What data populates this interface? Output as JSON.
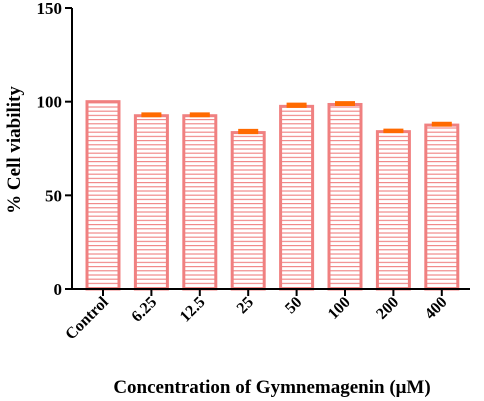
{
  "chart_data": {
    "type": "bar",
    "title": "",
    "xlabel": "Concentration of Gymnemagenin (μM)",
    "ylabel": "% Cell viability",
    "categories": [
      "Control",
      "6.25",
      "12.5",
      "25",
      "50",
      "100",
      "200",
      "400"
    ],
    "values": [
      100,
      92.5,
      92.5,
      83.5,
      97.5,
      98.5,
      84,
      87.5
    ],
    "errors": [
      0,
      1,
      1,
      1.2,
      1.2,
      1,
      0.8,
      1
    ],
    "ylim": [
      0,
      150
    ],
    "yticks": [
      0,
      50,
      100,
      150
    ],
    "grid": false,
    "legend": "none",
    "colors": {
      "bar_stroke": "#f08080",
      "hatch": "#f08080",
      "error_bar": "#ff6a00",
      "axis": "#000000"
    }
  }
}
